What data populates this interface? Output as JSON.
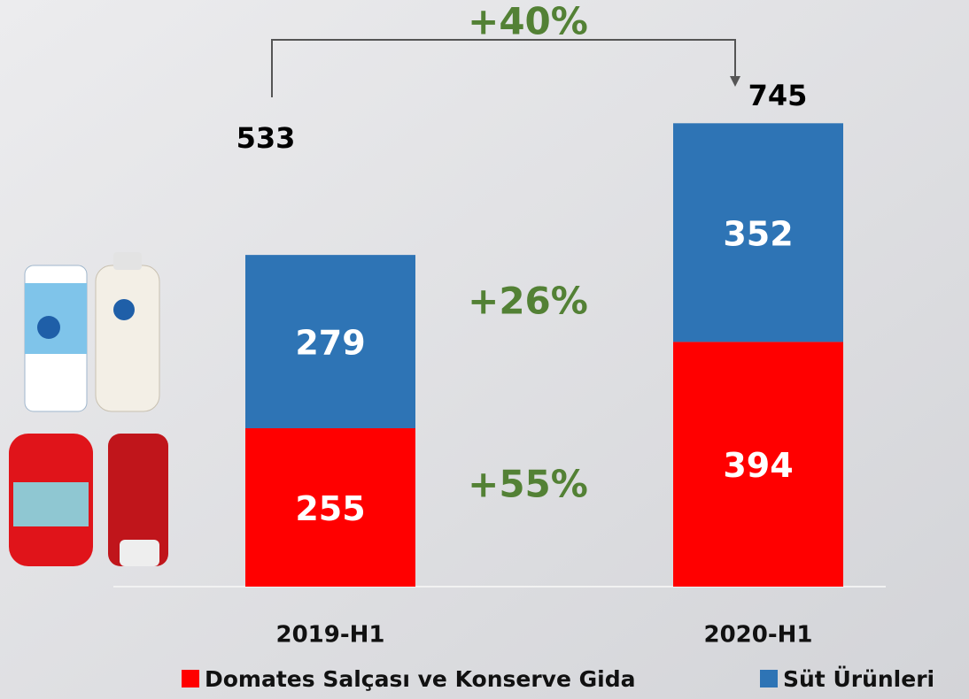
{
  "chart_data": {
    "type": "stacked_bar",
    "categories": [
      "2019-H1",
      "2020-H1"
    ],
    "series": [
      {
        "name": "Domates Salçası ve Konserve Gida",
        "color": "#ff0000",
        "values": [
          255,
          394
        ]
      },
      {
        "name": "Süt Ürünleri",
        "color": "#2e74b5",
        "values": [
          279,
          352
        ]
      }
    ],
    "totals": [
      533,
      745
    ],
    "annotations": [
      "+40%",
      "+26%",
      "+55%"
    ],
    "ylim": [
      0,
      800
    ]
  }
}
